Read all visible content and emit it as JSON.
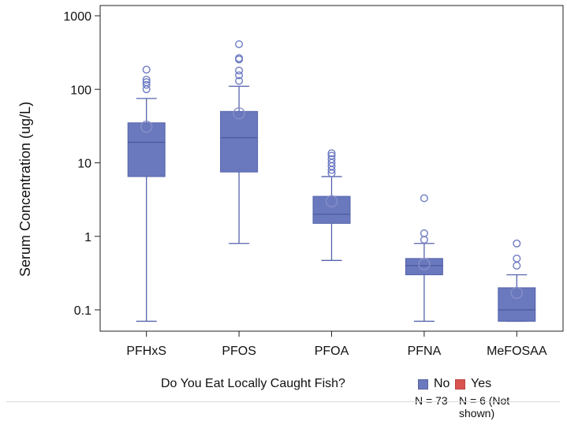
{
  "chart_data": {
    "type": "box",
    "ylabel": "Serum Concentration (ug/L)",
    "yscale": "log",
    "ylim": [
      0.07,
      1000
    ],
    "yticks": [
      0.1,
      1,
      10,
      100,
      1000
    ],
    "ytick_labels": [
      "0.1",
      "1",
      "10",
      "100",
      "1000"
    ],
    "categories": [
      "PFHxS",
      "PFOS",
      "PFOA",
      "PFNA",
      "MeFOSAA"
    ],
    "boxes": [
      {
        "name": "PFHxS",
        "min": 0.07,
        "q1": 6.5,
        "median": 19,
        "q3": 35,
        "whisker_high": 75,
        "mean": 31,
        "outliers": [
          100,
          115,
          125,
          135,
          185
        ]
      },
      {
        "name": "PFOS",
        "min": 0.8,
        "q1": 7.5,
        "median": 22,
        "q3": 50,
        "whisker_high": 110,
        "mean": 47,
        "outliers": [
          130,
          155,
          180,
          255,
          265,
          410
        ]
      },
      {
        "name": "PFOA",
        "min": 0.47,
        "q1": 1.5,
        "median": 2.0,
        "q3": 3.5,
        "whisker_high": 6.5,
        "mean": 3.0,
        "outliers": [
          7.2,
          8.0,
          9.0,
          10.0,
          11.2,
          12.5,
          13.5
        ]
      },
      {
        "name": "PFNA",
        "min": 0.07,
        "q1": 0.3,
        "median": 0.4,
        "q3": 0.5,
        "whisker_high": 0.8,
        "mean": 0.42,
        "outliers": [
          0.9,
          1.1,
          3.3
        ]
      },
      {
        "name": "MeFOSAA",
        "min": 0.07,
        "q1": 0.07,
        "median": 0.1,
        "q3": 0.2,
        "whisker_high": 0.3,
        "mean": 0.17,
        "outliers": [
          0.4,
          0.5,
          0.8
        ]
      }
    ],
    "grid": false,
    "legend": {
      "title": "Do You Eat Locally Caught Fish?",
      "position": "bottom",
      "entries": [
        {
          "label": "No",
          "note": "N = 73",
          "color": "#6a78bd"
        },
        {
          "label": "Yes",
          "note": "N = 6 (Not shown)",
          "color": "#d9534f"
        }
      ]
    }
  },
  "colors": {
    "box_fill": "#6a78bd",
    "box_stroke": "#5563ad",
    "outlier": "#6e7bc2",
    "axis": "#222222"
  }
}
